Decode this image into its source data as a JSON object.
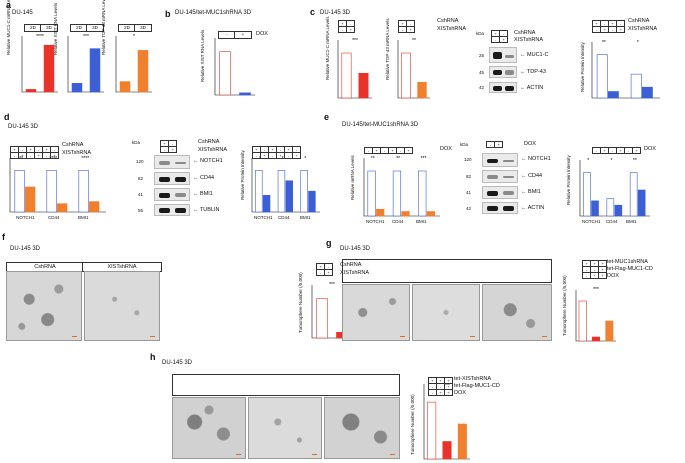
{
  "panels": {
    "a": {
      "letter": "a",
      "title": "DU-145"
    },
    "b": {
      "letter": "b",
      "title": "DU-145/tet-MUC1shRNA 3D",
      "dox": "DOX"
    },
    "c": {
      "letter": "c",
      "title": "DU-145 3D",
      "csh": "CshRNA",
      "xist": "XISTshRNA",
      "kda": "kDa",
      "proteins": [
        "MUC1-C",
        "TDP-43",
        "ACTIN"
      ],
      "mw": [
        "25",
        "45",
        "42"
      ]
    },
    "d": {
      "letter": "d",
      "title": "DU-145 3D",
      "csh": "CshRNA",
      "xist": "XISTshRNA",
      "kda": "kDa",
      "proteins": [
        "NOTCH1",
        "CD44",
        "BMI1",
        "TUBLIN"
      ],
      "mw": [
        "120",
        "82",
        "41",
        "55"
      ],
      "genes": [
        "NOTCH1",
        "CD44",
        "BMI1"
      ]
    },
    "e": {
      "letter": "e",
      "title": "DU-145/tet-MUC1shRNA 3D",
      "dox": "DOX",
      "kda": "kDa",
      "proteins": [
        "NOTCH1",
        "CD44",
        "BMI1",
        "ACTIN"
      ],
      "mw": [
        "120",
        "82",
        "41",
        "42"
      ],
      "genes": [
        "NOTCH1",
        "CD44",
        "BMI1"
      ]
    },
    "f": {
      "letter": "f",
      "title": "DU-145 3D",
      "csh": "CshRNA",
      "xist": "XISTshRNA"
    },
    "g": {
      "letter": "g",
      "title": "DU-145 3D",
      "row1": "tet-MUC1shRNA",
      "row2": "tet-Flag-MUC1-CD",
      "row3": "DOX"
    },
    "h": {
      "letter": "h",
      "title": "DU-145 3D",
      "row1": "tet-XISTshRNA",
      "row2": "tet-Flag-MUC1-CD",
      "row3": "DOX"
    }
  },
  "labels": {
    "muc1c": "Relative MUC1-C mRNA Levels",
    "xist": "Relative XIST RNA Levels",
    "tdp43": "Relative TDP-43 mRNA Levels",
    "xistb": "Relative XIST RNA Levels",
    "mrna": "Relative mRNA Levels",
    "protein": "Relative Protein Intensity",
    "tumor": "Tumorsphere Number (/5,000)",
    "twoD": "2D",
    "threeD": "3D",
    "plus": "+",
    "minus": "-"
  },
  "colors": {
    "red": "#e8332b",
    "blue": "#3c5fd6",
    "orange": "#f07f2e",
    "white": "#ffffff"
  },
  "chart_data": [
    {
      "panel": "a",
      "type": "bar",
      "categories": [
        "2D",
        "3D"
      ],
      "values": [
        1,
        18
      ],
      "ylabel": "Relative MUC1-C mRNA Levels",
      "significance": "****"
    },
    {
      "panel": "a",
      "type": "bar",
      "categories": [
        "2D",
        "3D"
      ],
      "values": [
        1,
        5
      ],
      "ylabel": "Relative XIST RNA Levels",
      "significance": "***"
    },
    {
      "panel": "a",
      "type": "bar",
      "categories": [
        "2D",
        "3D"
      ],
      "values": [
        1,
        4
      ],
      "ylabel": "Relative TDP-43 mRNA Levels",
      "significance": "*"
    },
    {
      "panel": "b",
      "type": "bar",
      "categories": [
        "-",
        "+"
      ],
      "values": [
        1.0,
        0.05
      ],
      "ylabel": "Relative XIST RNA Levels",
      "significance": "***"
    },
    {
      "panel": "c",
      "type": "bar",
      "categories": [
        "CshRNA",
        "XISTshRNA"
      ],
      "values": [
        1.0,
        0.55
      ],
      "ylabel": "Relative MUC1-C mRNA Levels",
      "significance": "***"
    },
    {
      "panel": "c",
      "type": "bar",
      "categories": [
        "CshRNA",
        "XISTshRNA"
      ],
      "values": [
        1.0,
        0.35
      ],
      "ylabel": "Relative TDP-43 mRNA Levels",
      "significance": "**"
    },
    {
      "panel": "c",
      "type": "bar",
      "categories": [
        "MUC1-C",
        "TDP-43"
      ],
      "series": [
        {
          "values": [
            1.0,
            0.55
          ]
        },
        {
          "values": [
            0.15,
            0.25
          ]
        }
      ],
      "ylabel": "Relative Protein Intensity",
      "significance": [
        "**",
        "*"
      ]
    },
    {
      "panel": "d",
      "type": "bar",
      "categories": [
        "NOTCH1",
        "CD44",
        "BMI1"
      ],
      "series": [
        {
          "values": [
            1.0,
            1.0,
            1.0
          ]
        },
        {
          "values": [
            0.6,
            0.2,
            0.25
          ]
        }
      ],
      "ylabel": "Relative mRNA Levels",
      "significance": [
        "**",
        "****",
        "****"
      ]
    },
    {
      "panel": "d",
      "type": "bar",
      "categories": [
        "NOTCH1",
        "CD44",
        "BMI1"
      ],
      "series": [
        {
          "values": [
            1.0,
            1.0,
            1.0
          ]
        },
        {
          "values": [
            0.4,
            0.75,
            0.5
          ]
        }
      ],
      "ylabel": "Relative Protein Intensity",
      "significance": [
        "*",
        "*",
        "*"
      ]
    },
    {
      "panel": "e",
      "type": "bar",
      "categories": [
        "NOTCH1",
        "CD44",
        "BMI1"
      ],
      "series": [
        {
          "values": [
            1.0,
            1.0,
            1.0
          ]
        },
        {
          "values": [
            0.15,
            0.1,
            0.1
          ]
        }
      ],
      "ylabel": "Relative mRNA Levels",
      "significance": [
        "**",
        "**",
        "***"
      ]
    },
    {
      "panel": "e",
      "type": "bar",
      "categories": [
        "NOTCH1",
        "CD44",
        "BMI1"
      ],
      "series": [
        {
          "values": [
            1.0,
            0.4,
            1.0
          ]
        },
        {
          "values": [
            0.35,
            0.25,
            0.6
          ]
        }
      ],
      "ylabel": "Relative Protein Intensity",
      "significance": [
        "*",
        "*",
        "**"
      ]
    },
    {
      "panel": "f",
      "type": "bar",
      "categories": [
        "CshRNA",
        "XISTshRNA"
      ],
      "values": [
        55,
        8
      ],
      "ylabel": "Tumorsphere Number (/5,000)",
      "significance": "***"
    },
    {
      "panel": "g",
      "type": "bar",
      "categories": [
        "1",
        "2",
        "3"
      ],
      "values": [
        50,
        5,
        25
      ],
      "ylabel": "Tumorsphere Number (/5,000)",
      "significance": "***"
    },
    {
      "panel": "h",
      "type": "bar",
      "categories": [
        "1",
        "2",
        "3"
      ],
      "values": [
        65,
        20,
        40
      ],
      "ylabel": "Tumorsphere Number (/5,000)",
      "significance": "***"
    }
  ]
}
